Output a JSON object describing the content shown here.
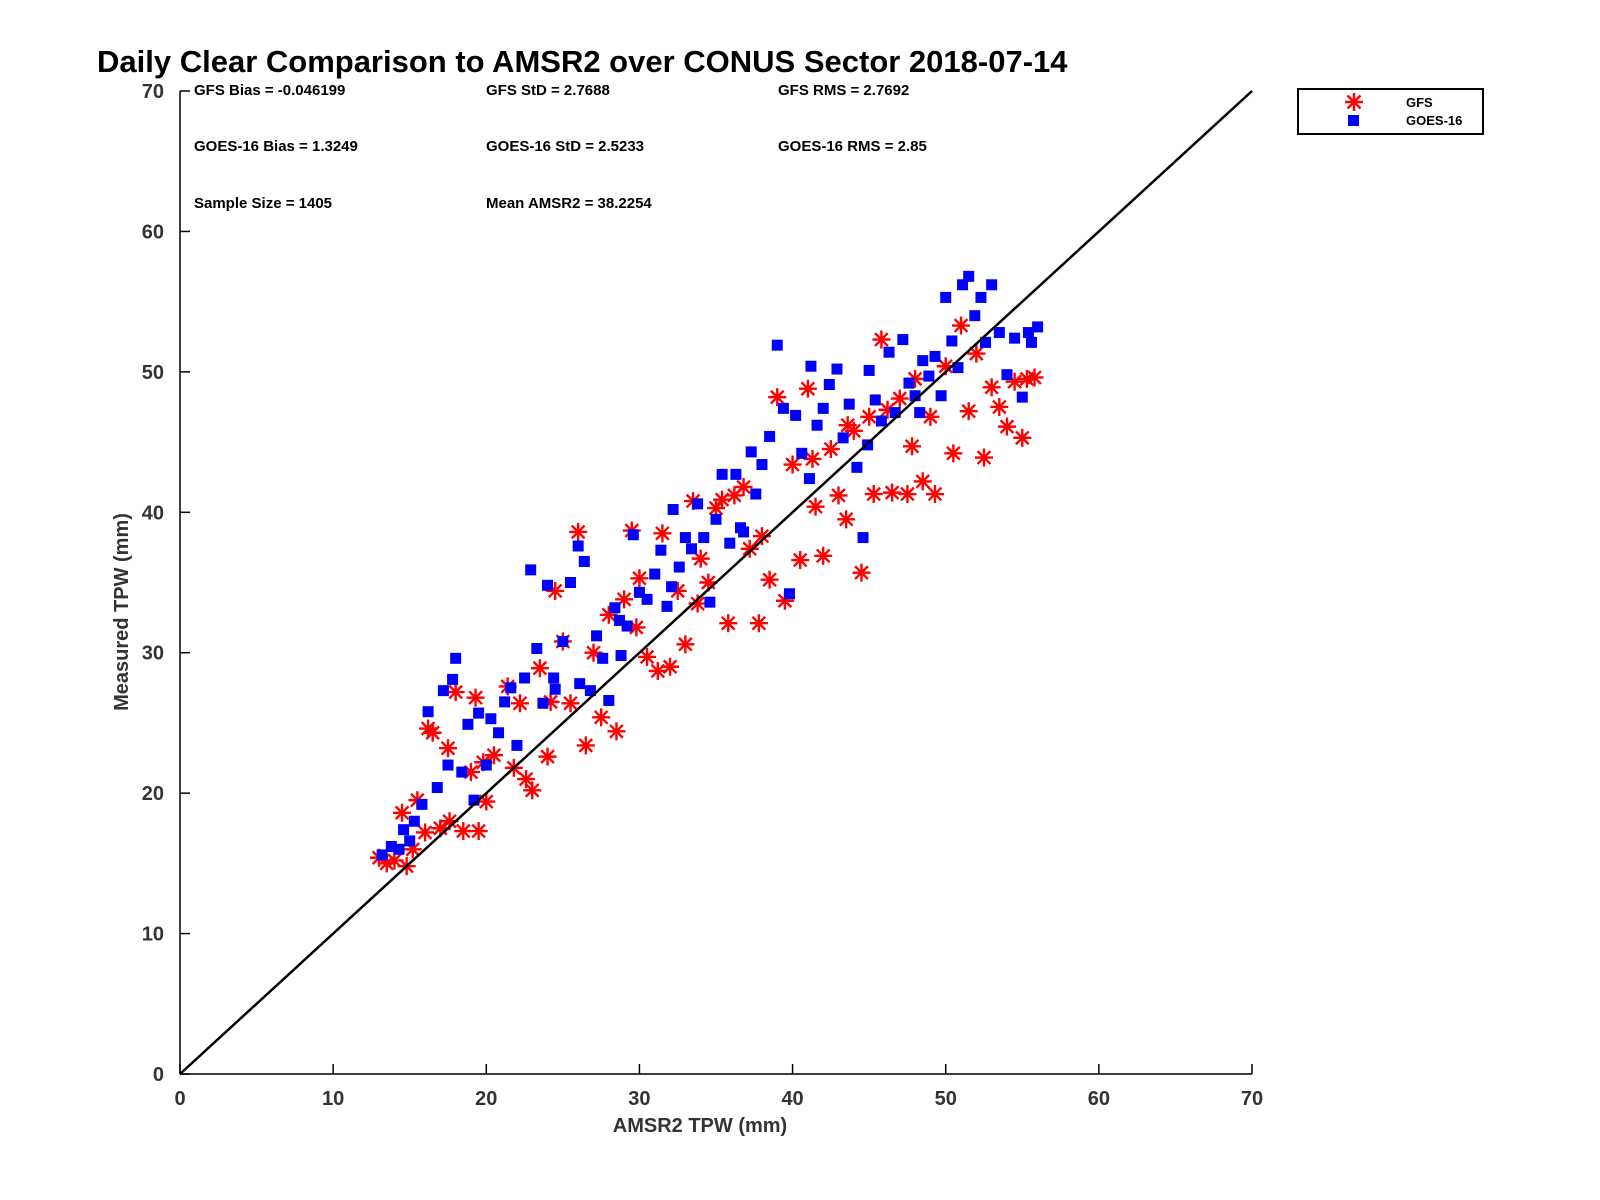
{
  "chart_data": {
    "type": "scatter",
    "title": "Daily Clear Comparison to AMSR2 over CONUS Sector 2018-07-14",
    "xlabel": "AMSR2 TPW (mm)",
    "ylabel": "Measured TPW (mm)",
    "xlim": [
      0,
      70
    ],
    "ylim": [
      0,
      70
    ],
    "x_ticks": [
      "0",
      "10",
      "20",
      "30",
      "40",
      "50",
      "60",
      "70"
    ],
    "y_ticks": [
      "0",
      "10",
      "20",
      "30",
      "40",
      "50",
      "60",
      "70"
    ],
    "grid": false,
    "legend_position": "top-right, outside plot",
    "reference_line": {
      "description": "1:1 line",
      "from": [
        0,
        0
      ],
      "to": [
        70,
        70
      ],
      "color": "#000000"
    },
    "stats": {
      "gfs_bias": "GFS Bias = -0.046199",
      "gfs_std": "GFS StD = 2.7688",
      "gfs_rms": "GFS RMS = 2.7692",
      "goes_bias": "GOES-16 Bias = 1.3249",
      "goes_std": "GOES-16 StD = 2.5233",
      "goes_rms": "GOES-16 RMS = 2.85",
      "sample_size": "Sample Size = 1405",
      "mean_amsr2": "Mean AMSR2 = 38.2254"
    },
    "series": [
      {
        "name": "GFS",
        "marker": "asterisk",
        "color": "#ff0000",
        "points": [
          [
            13,
            15.4
          ],
          [
            13.5,
            15
          ],
          [
            14,
            15.2
          ],
          [
            14.5,
            18.6
          ],
          [
            14.8,
            14.8
          ],
          [
            15.2,
            16
          ],
          [
            15.5,
            19.5
          ],
          [
            16,
            17.2
          ],
          [
            16.2,
            24.6
          ],
          [
            16.5,
            24.3
          ],
          [
            17,
            17.5
          ],
          [
            17.5,
            23.2
          ],
          [
            17.6,
            18
          ],
          [
            18,
            27.2
          ],
          [
            18.5,
            17.3
          ],
          [
            19,
            21.5
          ],
          [
            19.3,
            26.8
          ],
          [
            19.5,
            17.3
          ],
          [
            20,
            19.4
          ],
          [
            20.5,
            22.7
          ],
          [
            21.4,
            27.6
          ],
          [
            21.8,
            21.8
          ],
          [
            22.2,
            26.4
          ],
          [
            22.6,
            21
          ],
          [
            23,
            20.2
          ],
          [
            23.5,
            28.9
          ],
          [
            24,
            22.6
          ],
          [
            24.5,
            34.4
          ],
          [
            25,
            30.8
          ],
          [
            25.5,
            26.4
          ],
          [
            26,
            38.6
          ],
          [
            26.5,
            23.4
          ],
          [
            27,
            30
          ],
          [
            27.5,
            25.4
          ],
          [
            28,
            32.7
          ],
          [
            28.5,
            24.4
          ],
          [
            29,
            33.8
          ],
          [
            29.5,
            38.7
          ],
          [
            30,
            35.3
          ],
          [
            30.5,
            29.7
          ],
          [
            31.2,
            28.7
          ],
          [
            31.5,
            38.5
          ],
          [
            32,
            29
          ],
          [
            32.5,
            34.4
          ],
          [
            33,
            30.6
          ],
          [
            33.5,
            40.8
          ],
          [
            34,
            36.7
          ],
          [
            34.5,
            35
          ],
          [
            35,
            40.3
          ],
          [
            35.4,
            40.9
          ],
          [
            35.8,
            32.1
          ],
          [
            36.2,
            41.2
          ],
          [
            36.8,
            41.8
          ],
          [
            37.2,
            37.4
          ],
          [
            37.8,
            32.1
          ],
          [
            38,
            38.3
          ],
          [
            38.5,
            35.2
          ],
          [
            39,
            48.2
          ],
          [
            39.5,
            33.7
          ],
          [
            40,
            43.4
          ],
          [
            40.5,
            36.6
          ],
          [
            41,
            48.8
          ],
          [
            41.5,
            40.4
          ],
          [
            42,
            36.9
          ],
          [
            42.5,
            44.5
          ],
          [
            43,
            41.2
          ],
          [
            43.5,
            39.5
          ],
          [
            44,
            45.8
          ],
          [
            44.5,
            35.7
          ],
          [
            45,
            46.8
          ],
          [
            45.3,
            41.3
          ],
          [
            45.8,
            52.3
          ],
          [
            46.2,
            47.3
          ],
          [
            46.5,
            41.4
          ],
          [
            47,
            48.1
          ],
          [
            47.5,
            41.3
          ],
          [
            48,
            49.5
          ],
          [
            48.5,
            42.2
          ],
          [
            49,
            46.8
          ],
          [
            49.3,
            41.3
          ],
          [
            50,
            50.4
          ],
          [
            50.5,
            44.2
          ],
          [
            51,
            53.3
          ],
          [
            51.5,
            47.2
          ],
          [
            52,
            51.3
          ],
          [
            52.5,
            43.9
          ],
          [
            53,
            48.9
          ],
          [
            53.5,
            47.5
          ],
          [
            54,
            46.1
          ],
          [
            54.5,
            49.3
          ],
          [
            55,
            45.3
          ],
          [
            55.3,
            49.5
          ],
          [
            55.8,
            49.6
          ],
          [
            43.6,
            46.2
          ],
          [
            41.3,
            43.8
          ],
          [
            47.8,
            44.7
          ],
          [
            33.8,
            33.5
          ],
          [
            29.8,
            31.8
          ],
          [
            24.2,
            26.5
          ],
          [
            19.8,
            22.2
          ]
        ]
      },
      {
        "name": "GOES-16",
        "marker": "square",
        "color": "#0000ff",
        "points": [
          [
            13.2,
            15.6
          ],
          [
            13.8,
            16.2
          ],
          [
            14.3,
            16
          ],
          [
            14.6,
            17.4
          ],
          [
            15,
            16.6
          ],
          [
            15.3,
            18
          ],
          [
            15.8,
            19.2
          ],
          [
            16.2,
            25.8
          ],
          [
            16.8,
            20.4
          ],
          [
            17.2,
            27.3
          ],
          [
            17.5,
            22
          ],
          [
            17.8,
            28.1
          ],
          [
            18,
            29.6
          ],
          [
            18.4,
            21.5
          ],
          [
            18.8,
            24.9
          ],
          [
            19.2,
            19.5
          ],
          [
            19.5,
            25.7
          ],
          [
            20,
            22
          ],
          [
            20.3,
            25.3
          ],
          [
            20.8,
            24.3
          ],
          [
            21.2,
            26.5
          ],
          [
            21.6,
            27.5
          ],
          [
            22,
            23.4
          ],
          [
            22.5,
            28.2
          ],
          [
            22.9,
            35.9
          ],
          [
            23.3,
            30.3
          ],
          [
            23.7,
            26.4
          ],
          [
            24,
            34.8
          ],
          [
            24.5,
            27.4
          ],
          [
            25,
            30.8
          ],
          [
            25.5,
            35
          ],
          [
            26,
            37.6
          ],
          [
            26.4,
            36.5
          ],
          [
            26.8,
            27.3
          ],
          [
            27.2,
            31.2
          ],
          [
            27.6,
            29.6
          ],
          [
            28,
            26.6
          ],
          [
            28.4,
            33.2
          ],
          [
            28.8,
            29.8
          ],
          [
            29.2,
            31.9
          ],
          [
            29.6,
            38.4
          ],
          [
            30,
            34.3
          ],
          [
            30.5,
            33.8
          ],
          [
            31,
            35.6
          ],
          [
            31.4,
            37.3
          ],
          [
            31.8,
            33.3
          ],
          [
            32.2,
            40.2
          ],
          [
            32.6,
            36.1
          ],
          [
            33,
            38.2
          ],
          [
            33.4,
            37.4
          ],
          [
            33.8,
            40.6
          ],
          [
            34.2,
            38.2
          ],
          [
            34.6,
            33.6
          ],
          [
            35,
            39.5
          ],
          [
            35.4,
            42.7
          ],
          [
            35.9,
            37.8
          ],
          [
            36.3,
            42.7
          ],
          [
            36.8,
            38.6
          ],
          [
            37.3,
            44.3
          ],
          [
            37.6,
            41.3
          ],
          [
            38,
            43.4
          ],
          [
            38.5,
            45.4
          ],
          [
            39,
            51.9
          ],
          [
            39.4,
            47.4
          ],
          [
            39.8,
            34.2
          ],
          [
            40.2,
            46.9
          ],
          [
            40.6,
            44.2
          ],
          [
            41.2,
            50.4
          ],
          [
            41.6,
            46.2
          ],
          [
            42,
            47.4
          ],
          [
            42.4,
            49.1
          ],
          [
            42.9,
            50.2
          ],
          [
            43.3,
            45.3
          ],
          [
            43.7,
            47.7
          ],
          [
            44.2,
            43.2
          ],
          [
            44.6,
            38.2
          ],
          [
            45,
            50.1
          ],
          [
            45.4,
            48
          ],
          [
            45.8,
            46.5
          ],
          [
            46.3,
            51.4
          ],
          [
            46.7,
            47.1
          ],
          [
            47.2,
            52.3
          ],
          [
            47.6,
            49.2
          ],
          [
            48,
            48.3
          ],
          [
            48.5,
            50.8
          ],
          [
            48.9,
            49.7
          ],
          [
            49.3,
            51.1
          ],
          [
            49.7,
            48.3
          ],
          [
            50,
            55.3
          ],
          [
            50.4,
            52.2
          ],
          [
            50.8,
            50.3
          ],
          [
            51.1,
            56.2
          ],
          [
            51.5,
            56.8
          ],
          [
            51.9,
            54
          ],
          [
            52.3,
            55.3
          ],
          [
            52.6,
            52.1
          ],
          [
            53,
            56.2
          ],
          [
            53.5,
            52.8
          ],
          [
            54,
            49.8
          ],
          [
            54.5,
            52.4
          ],
          [
            55,
            48.2
          ],
          [
            55.4,
            52.8
          ],
          [
            56,
            53.2
          ],
          [
            55.6,
            52.1
          ],
          [
            48.3,
            47.1
          ],
          [
            44.9,
            44.8
          ],
          [
            41.1,
            42.4
          ],
          [
            36.6,
            38.9
          ],
          [
            32.1,
            34.7
          ],
          [
            28.7,
            32.3
          ],
          [
            26.1,
            27.8
          ],
          [
            24.4,
            28.2
          ]
        ]
      }
    ]
  }
}
